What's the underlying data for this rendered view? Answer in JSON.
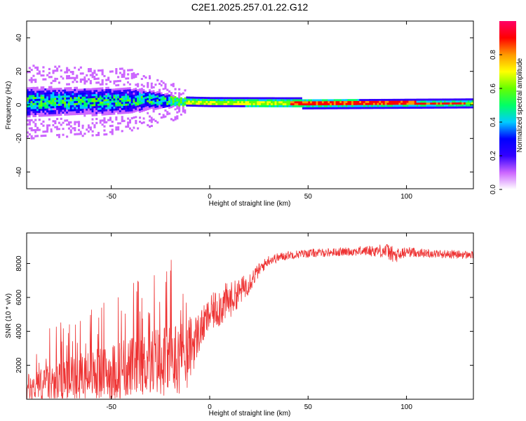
{
  "title": "C2E1.2025.257.01.22.G12",
  "chart_data": [
    {
      "type": "heatmap",
      "name": "spectrogram",
      "xlabel": "Height of straight line (km)",
      "ylabel": "Frequency (Hz)",
      "xlim": [
        -93,
        134
      ],
      "ylim": [
        -50,
        50
      ],
      "xticks": [
        -50,
        0,
        50,
        100
      ],
      "yticks": [
        -40,
        -20,
        0,
        20,
        40
      ],
      "colorbar": {
        "label": "Normalized spectral amplitude",
        "range": [
          0,
          1
        ],
        "ticks": [
          "0.0",
          "0.2",
          "0.4",
          "0.6",
          "0.8"
        ],
        "tick_values": [
          0.0,
          0.2,
          0.4,
          0.6,
          0.8
        ],
        "colors": [
          "#ffffff",
          "#cc66ff",
          "#3300ff",
          "#0000ff",
          "#00ccff",
          "#00ff66",
          "#66ff00",
          "#ffff00",
          "#ff9900",
          "#ff0000",
          "#ff0066"
        ]
      },
      "signal_center_hz": [
        {
          "x": -93,
          "f": 2
        },
        {
          "x": -60,
          "f": 2
        },
        {
          "x": -30,
          "f": 3
        },
        {
          "x": -15,
          "f": 2
        },
        {
          "x": 0,
          "f": 1.5
        },
        {
          "x": 50,
          "f": 1
        },
        {
          "x": 134,
          "f": 1
        }
      ],
      "noise_band_halfwidth_hz": [
        {
          "x": -93,
          "w": 18
        },
        {
          "x": -40,
          "w": 15
        },
        {
          "x": -20,
          "w": 8
        },
        {
          "x": -12,
          "w": 3
        },
        {
          "x": 134,
          "w": 2
        }
      ]
    },
    {
      "type": "line",
      "name": "snr",
      "xlabel": "Height of straight line (km)",
      "ylabel": "SNR (10 * v/v)",
      "xlim": [
        -93,
        134
      ],
      "ylim": [
        0,
        9800
      ],
      "xticks": [
        -50,
        0,
        50,
        100
      ],
      "yticks": [
        2000,
        4000,
        6000,
        8000
      ],
      "color": "#ee3333",
      "series": [
        {
          "name": "SNR",
          "x": [
            -93,
            -80,
            -70,
            -60,
            -50,
            -40,
            -30,
            -20,
            -12,
            -5,
            0,
            5,
            10,
            15,
            20,
            25,
            30,
            40,
            50,
            60,
            70,
            80,
            90,
            95,
            100,
            110,
            120,
            134
          ],
          "mean": [
            600,
            1000,
            1200,
            1400,
            1600,
            1900,
            2200,
            2400,
            2600,
            4000,
            5000,
            5500,
            5800,
            6300,
            6900,
            7600,
            8200,
            8500,
            8600,
            8650,
            8700,
            8750,
            8750,
            8400,
            8700,
            8600,
            8550,
            8500
          ],
          "spread": [
            900,
            1200,
            1400,
            1500,
            1700,
            1800,
            2000,
            2200,
            2200,
            1200,
            1000,
            1300,
            1100,
            800,
            700,
            400,
            300,
            250,
            250,
            250,
            250,
            300,
            450,
            500,
            300,
            250,
            250,
            250
          ]
        }
      ]
    }
  ]
}
